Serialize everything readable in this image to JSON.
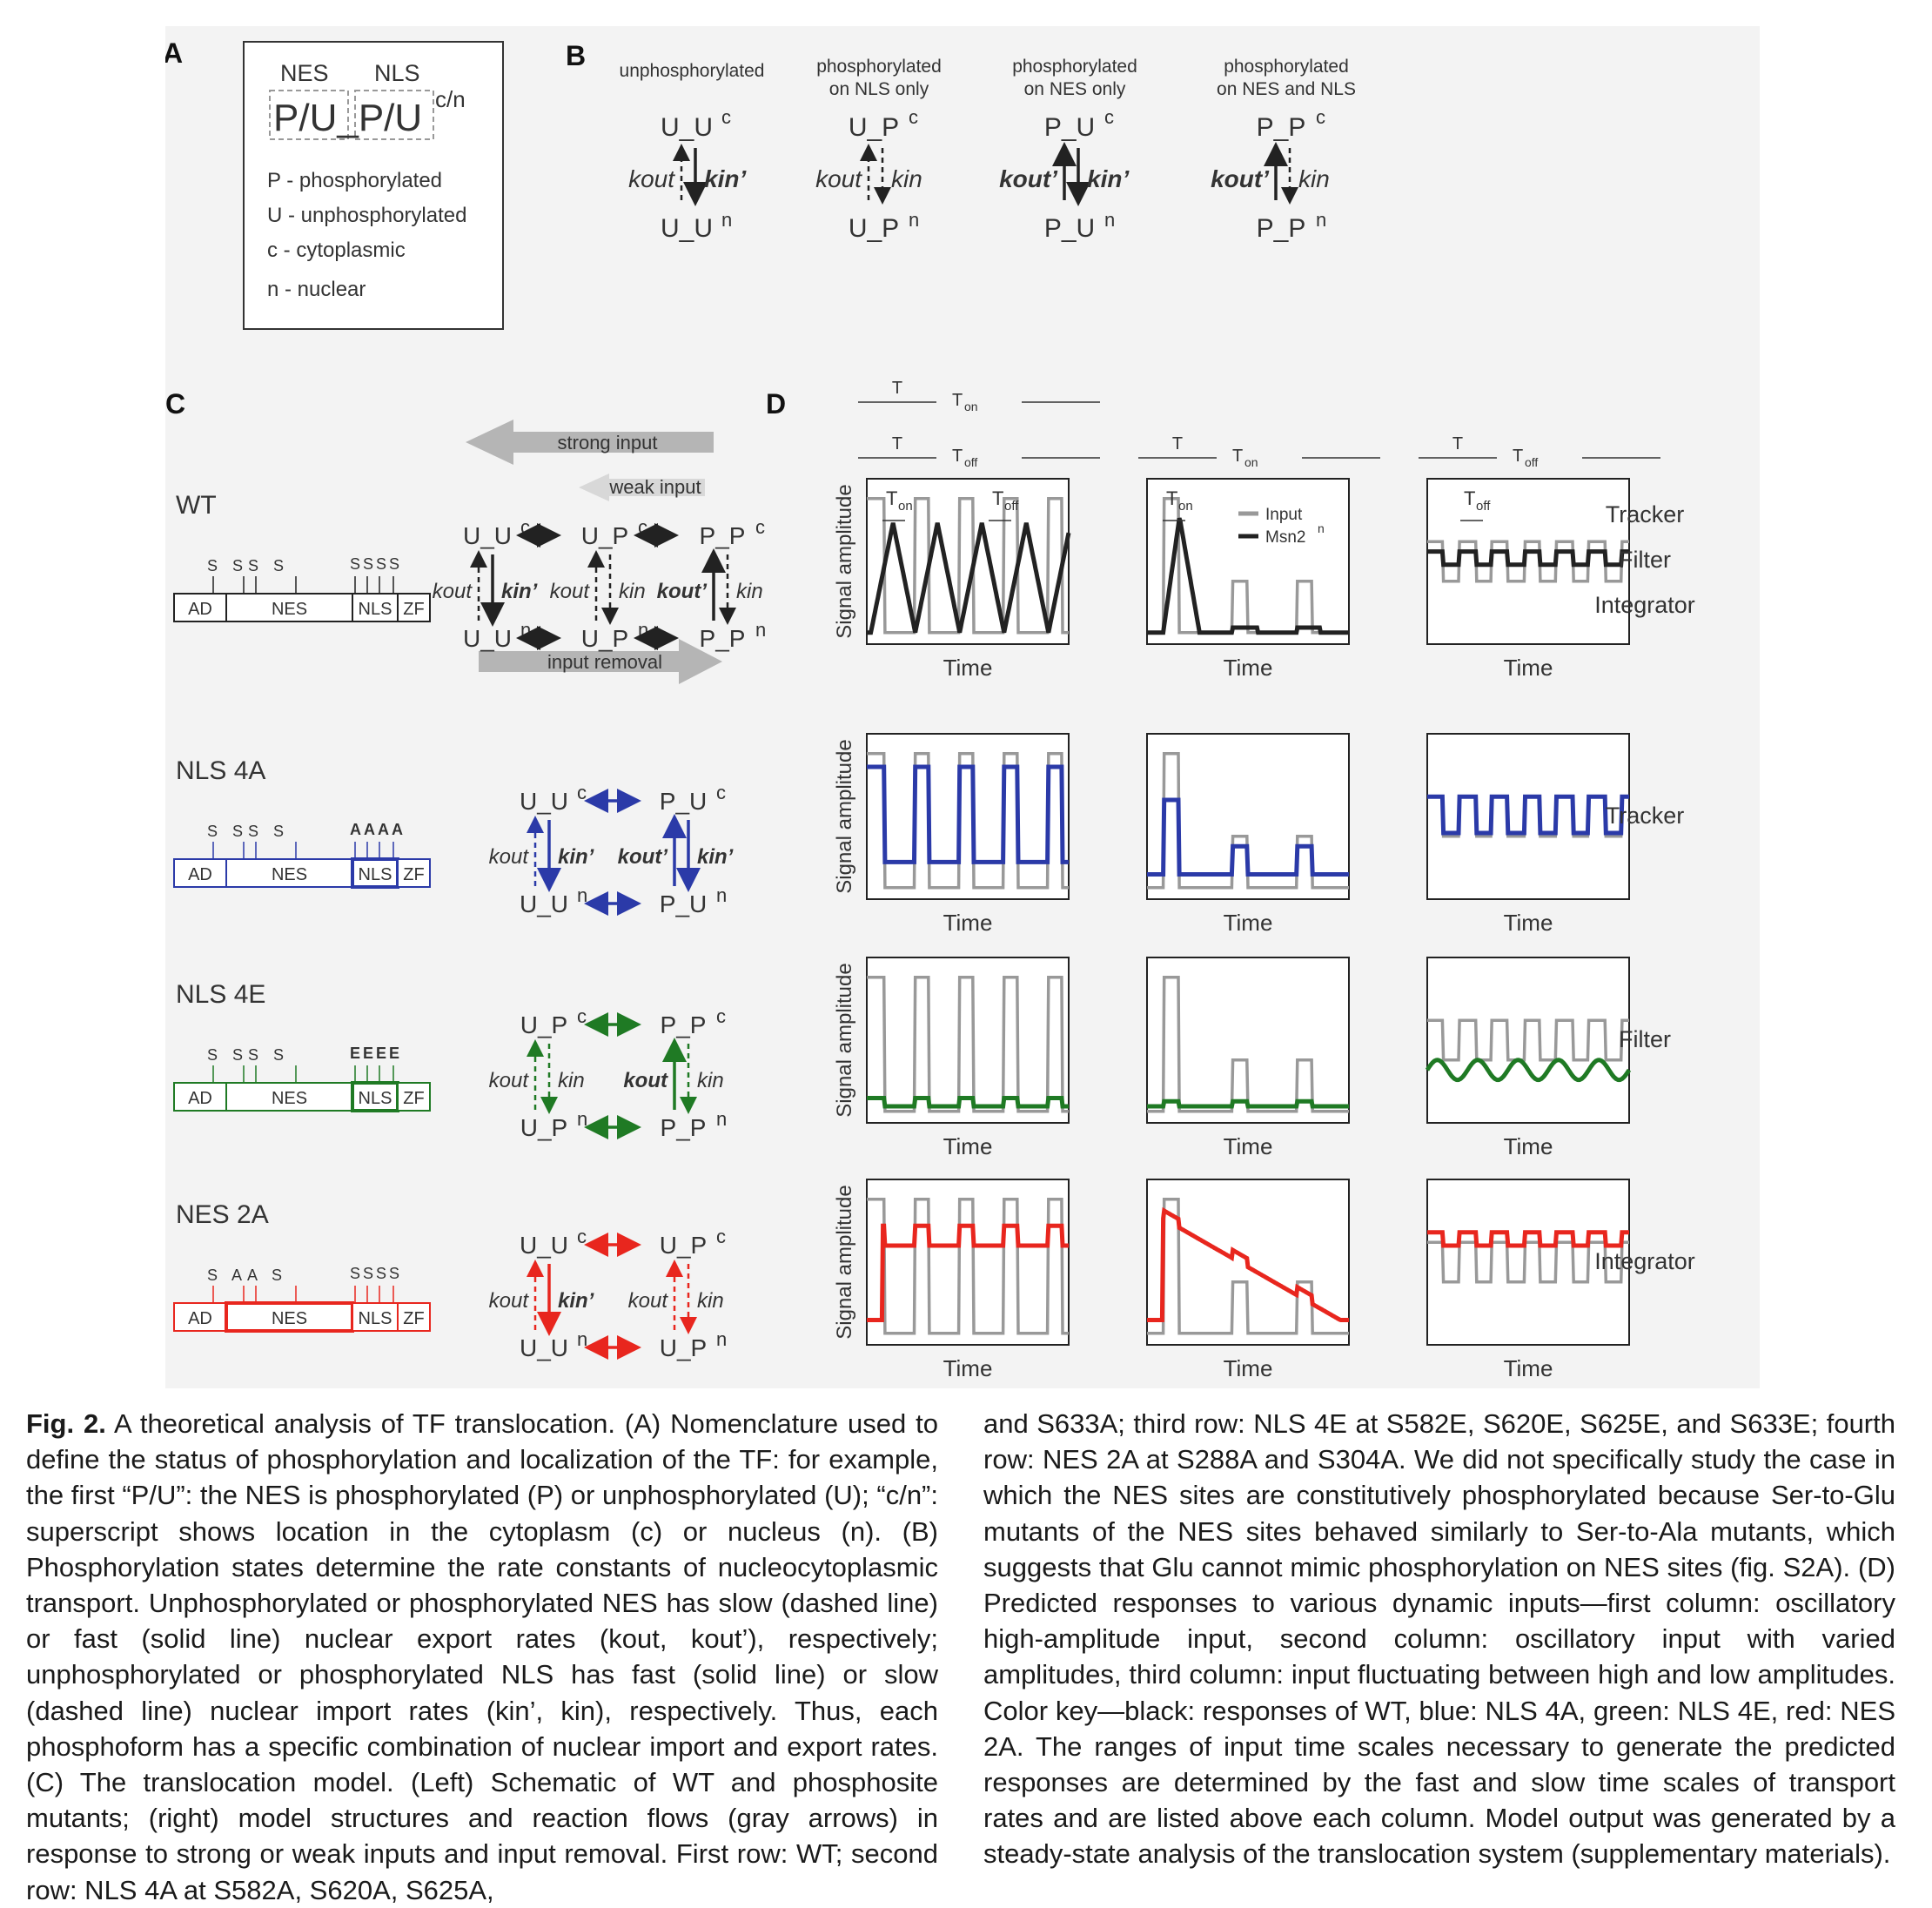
{
  "panel_a": {
    "label": "A",
    "nes": "NES",
    "nls": "NLS",
    "formula_main": "P/U_P/U",
    "formula_sup": "c/n",
    "legend": [
      "P - phosphorylated",
      "U - unphosphorylated",
      "c - cytoplasmic",
      "n - nuclear"
    ]
  },
  "panel_b": {
    "label": "B",
    "columns": [
      {
        "heading": [
          "unphosphorylated"
        ],
        "top": "U_U",
        "top_sup": "c",
        "bottom": "U_U",
        "bottom_sup": "n",
        "out": "kout",
        "in": "kin’"
      },
      {
        "heading": [
          "phosphorylated",
          "on NLS only"
        ],
        "top": "U_P",
        "top_sup": "c",
        "bottom": "U_P",
        "bottom_sup": "n",
        "out": "kout",
        "in": "kin"
      },
      {
        "heading": [
          "phosphorylated",
          "on NES only"
        ],
        "top": "P_U",
        "top_sup": "c",
        "bottom": "P_U",
        "bottom_sup": "n",
        "out": "kout’",
        "in": "kin’"
      },
      {
        "heading": [
          "phosphorylated",
          "on NES and NLS"
        ],
        "top": "P_P",
        "top_sup": "c",
        "bottom": "P_P",
        "bottom_sup": "n",
        "out": "kout’",
        "in": "kin"
      }
    ]
  },
  "panel_c": {
    "label": "C",
    "arrows": {
      "strong": "strong input",
      "weak": "weak input",
      "removal": "input removal"
    },
    "rows": [
      {
        "name": "WT",
        "color": "#222222",
        "domains": [
          "AD",
          "NES",
          "NLS",
          "ZF"
        ],
        "sites_nes": "S SS S",
        "sites_nls": "SSSS"
      },
      {
        "name": "NLS 4A",
        "color": "#2b3aa8",
        "domains": [
          "AD",
          "NES",
          "NLS",
          "ZF"
        ],
        "sites_nes": "S SS S",
        "sites_nls": "AAAA"
      },
      {
        "name": "NLS 4E",
        "color": "#1f7a24",
        "domains": [
          "AD",
          "NES",
          "NLS",
          "ZF"
        ],
        "sites_nes": "S SS S",
        "sites_nls": "EEEE"
      },
      {
        "name": "NES 2A",
        "color": "#e8261e",
        "domains": [
          "AD",
          "NES",
          "NLS",
          "ZF"
        ],
        "sites_nes": "S AA S",
        "sites_nls": "SSSS"
      }
    ],
    "species": {
      "uuc": "U_U",
      "upc": "U_P",
      "ppc": "P_P",
      "puc": "P_U",
      "uun": "U_U",
      "upn": "U_P",
      "ppn": "P_P",
      "pun": "P_U",
      "c": "c",
      "n": "n",
      "kout": "kout",
      "kout_p": "kout’",
      "kin": "kin",
      "kin_p": "kin’"
    }
  },
  "panel_d": {
    "label": "D",
    "ylabel": "Signal amplitude",
    "xlabel": "Time",
    "legend": {
      "input": "Input",
      "output": "Msn2",
      "output_sup": "n"
    },
    "ton": "T",
    "ton_sub": "on",
    "toff": "T",
    "toff_sub": "off",
    "row_labels": [
      [
        "Tracker",
        "Filter",
        "Integrator"
      ],
      [
        "Tracker"
      ],
      [
        "Filter"
      ],
      [
        "Integrator"
      ]
    ],
    "colors": {
      "input": "#999999",
      "wt": "#222222",
      "nls4a": "#2b3aa8",
      "nls4e": "#1f7a24",
      "nes2a": "#e8261e"
    }
  },
  "caption": {
    "title": "Fig. 2.",
    "left": " A theoretical analysis of TF translocation. (A) Nomenclature used to define the status of phosphorylation and localization of the TF: for example, the first “P/U”: the NES is phosphorylated (P) or unphosphorylated (U); “c/n”: superscript shows location in the cytoplasm (c) or nucleus (n). (B) Phosphorylation states determine the rate constants of nucleocytoplasmic transport. Unphosphorylated or phosphorylated NES has slow (dashed line) or fast (solid line) nuclear export rates (kout, kout’), respectively; unphosphorylated or phosphorylated NLS has fast (solid line) or slow (dashed line) nuclear import rates (kin’, kin), respectively. Thus, each phosphoform has a specific combination of nuclear import and export rates. (C) The translocation model. (Left) Schematic of WT and phosphosite mutants; (right) model structures and reaction flows (gray arrows) in response to strong or weak inputs and input removal. First row: WT; second row: NLS 4A at S582A, S620A, S625A,",
    "right": "and S633A; third row: NLS 4E at S582E, S620E, S625E, and S633E; fourth row: NES 2A at S288A and S304A. We did not specifically study the case in which the NES sites are constitutively phosphorylated because Ser-to-Glu mutants of the NES sites behaved similarly to Ser-to-Ala mutants, which suggests that Glu cannot mimic phosphorylation on NES sites (fig. S2A). (D) Predicted responses to various dynamic inputs—first column: oscillatory high-amplitude input, second column: oscillatory input with varied amplitudes, third column: input fluctuating between high and low amplitudes. Color key—black: responses of WT, blue: NLS 4A, green: NLS 4E, red: NES 2A. The ranges of input time scales necessary to generate the predicted responses are determined by the fast and slow time scales of transport rates and are listed above each column. Model output was generated by a steady-state analysis of the translocation system (supplementary materials)."
  }
}
